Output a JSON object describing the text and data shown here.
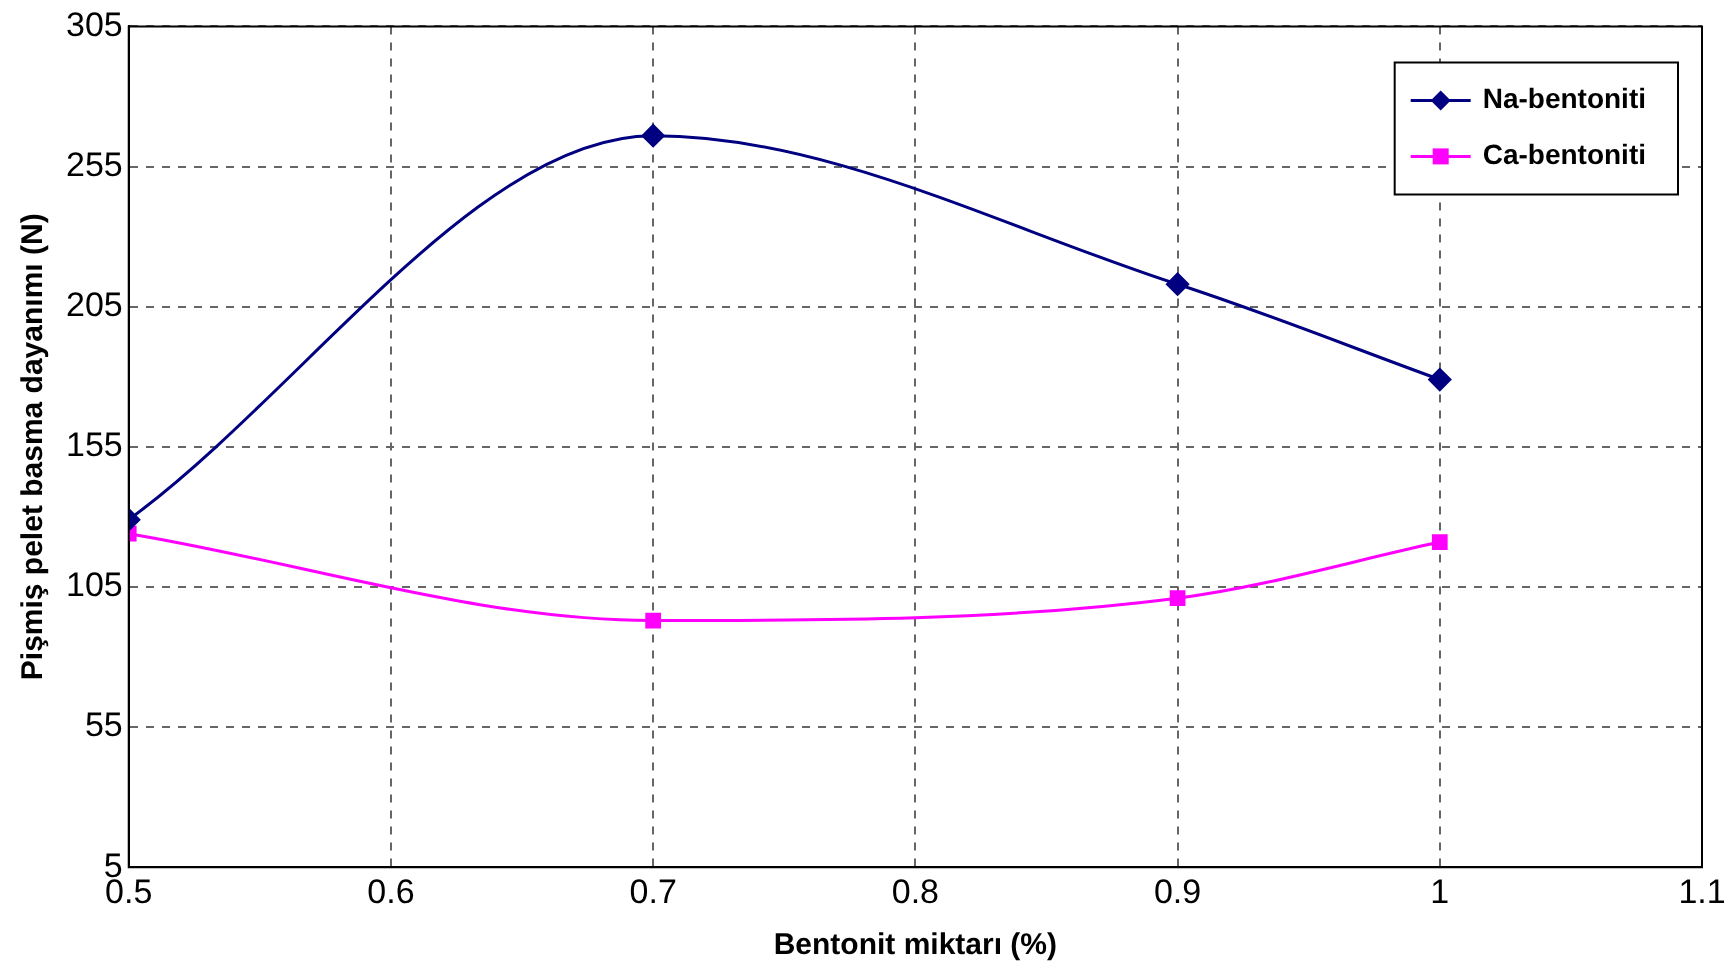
{
  "chart_data": {
    "type": "line",
    "xlabel": "Bentonit miktarı (%)",
    "ylabel": "Pişmiş pelet basma dayanımı (N)",
    "x": [
      0.5,
      0.7,
      0.9,
      1.0
    ],
    "series": [
      {
        "name": "Na-bentoniti",
        "color": "#000080",
        "marker": "diamond",
        "values": [
          129,
          266,
          213,
          179
        ]
      },
      {
        "name": "Ca-bentoniti",
        "color": "#ff00ff",
        "marker": "square",
        "values": [
          124,
          93,
          101,
          121
        ]
      }
    ],
    "xlim": [
      0.5,
      1.1
    ],
    "xticks": [
      0.5,
      0.6,
      0.7,
      0.8,
      0.9,
      1,
      1.1
    ],
    "ylim": [
      5,
      305
    ],
    "yticks": [
      5,
      55,
      105,
      155,
      205,
      255,
      305
    ],
    "grid": true,
    "legend": "top right",
    "line_style": "solid"
  }
}
